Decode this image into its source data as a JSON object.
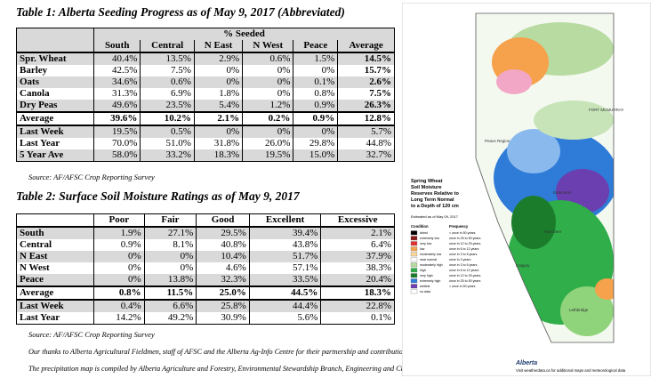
{
  "table1": {
    "title": "Table 1: Alberta Seeding Progress as of May 9, 2017 (Abbreviated)",
    "group_header": "% Seeded",
    "columns": [
      "South",
      "Central",
      "N East",
      "N West",
      "Peace",
      "Average"
    ],
    "rows": [
      [
        "Spr. Wheat",
        "40.4%",
        "13.5%",
        "2.9%",
        "0.6%",
        "1.5%",
        "14.5%"
      ],
      [
        "Barley",
        "42.5%",
        "7.5%",
        "0%",
        "0%",
        "0%",
        "15.7%"
      ],
      [
        "Oats",
        "34.6%",
        "0.6%",
        "0%",
        "0%",
        "0.1%",
        "2.6%"
      ],
      [
        "Canola",
        "31.3%",
        "6.9%",
        "1.8%",
        "0%",
        "0.8%",
        "7.5%"
      ],
      [
        "Dry Peas",
        "49.6%",
        "23.5%",
        "5.4%",
        "1.2%",
        "0.9%",
        "26.3%"
      ],
      [
        "Average",
        "39.6%",
        "10.2%",
        "2.1%",
        "0.2%",
        "0.9%",
        "12.8%"
      ],
      [
        "Last Week",
        "19.5%",
        "0.5%",
        "0%",
        "0%",
        "0%",
        "5.7%"
      ],
      [
        "Last Year",
        "70.0%",
        "51.0%",
        "31.8%",
        "26.0%",
        "29.8%",
        "44.8%"
      ],
      [
        "5 Year Ave",
        "58.0%",
        "33.2%",
        "18.3%",
        "19.5%",
        "15.0%",
        "32.7%"
      ]
    ],
    "source": "Source: AF/AFSC Crop Reporting Survey"
  },
  "table2": {
    "title": "Table 2: Surface Soil Moisture Ratings as of May 9, 2017",
    "columns": [
      "Poor",
      "Fair",
      "Good",
      "Excellent",
      "Excessive"
    ],
    "rows": [
      [
        "South",
        "1.9%",
        "27.1%",
        "29.5%",
        "39.4%",
        "2.1%"
      ],
      [
        "Central",
        "0.9%",
        "8.1%",
        "40.8%",
        "43.8%",
        "6.4%"
      ],
      [
        "N East",
        "0%",
        "0%",
        "10.4%",
        "51.7%",
        "37.9%"
      ],
      [
        "N West",
        "0%",
        "0%",
        "4.6%",
        "57.1%",
        "38.3%"
      ],
      [
        "Peace",
        "0%",
        "13.8%",
        "32.3%",
        "33.5%",
        "20.4%"
      ],
      [
        "Average",
        "0.8%",
        "11.5%",
        "25.0%",
        "44.5%",
        "18.3%"
      ],
      [
        "Last Week",
        "0.4%",
        "6.6%",
        "25.8%",
        "44.4%",
        "22.8%"
      ],
      [
        "Last Year",
        "14.2%",
        "49.2%",
        "30.9%",
        "5.6%",
        "0.1%"
      ]
    ],
    "source": "Source: AF/AFSC Crop Reporting Survey"
  },
  "footnotes": [
    "Our thanks to Alberta Agricultural Fieldmen, staff of AFSC and the Alberta Ag-Info Centre for their partnership and contribution to the Alberta Crop Reporting Program.",
    "The precipitation map is compiled by Alberta Agriculture and Forestry, Environmental Stewardship Branch, Engineering and Climate Services Section."
  ],
  "map": {
    "title": [
      "Spring Wheat",
      "Soil Moisture",
      "Reserves Relative to",
      "Long Term Normal",
      "to a Depth of 120 cm"
    ],
    "estimated": "Estimated as of May 09, 2017",
    "condition_header": "Condition",
    "frequency_header": "Frequency",
    "conditions": [
      "driest",
      "extremely low",
      "very low",
      "low",
      "moderately low",
      "near normal",
      "moderately high",
      "high",
      "very high",
      "extremely high",
      "wettest",
      "no data"
    ],
    "frequencies": [
      "< once in 50 years",
      "once in 25 to 50 years",
      "once in 12 to 25 years",
      "once in 6 to 12 years",
      "once in 3 to 6 years",
      "once in 3 years",
      "once in 3 to 6 years",
      "once in 6 to 12 years",
      "once in 12 to 25 years",
      "once in 25 to 50 years",
      "> once in 50 years"
    ],
    "places": [
      "FORT MCMURRAY",
      "Peace Region",
      "Edmonton",
      "Red Deer",
      "Calgary",
      "Lethbridge"
    ],
    "logo": "Alberta",
    "footer": "Visit weatherdata.ca for additional maps and meteorological data"
  }
}
